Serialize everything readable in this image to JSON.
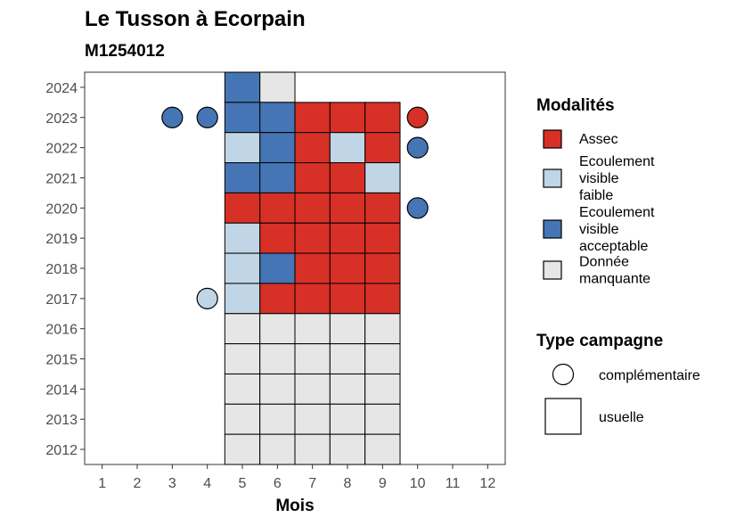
{
  "chart_data": {
    "type": "heatmap",
    "title": "Le Tusson à Ecorpain",
    "subtitle": "M1254012",
    "xlabel": "Mois",
    "ylabel": "",
    "x_ticks": [
      "1",
      "2",
      "3",
      "4",
      "5",
      "6",
      "7",
      "8",
      "9",
      "10",
      "11",
      "12"
    ],
    "y_ticks": [
      "2012",
      "2013",
      "2014",
      "2015",
      "2016",
      "2017",
      "2018",
      "2019",
      "2020",
      "2021",
      "2022",
      "2023",
      "2024"
    ],
    "xlim": [
      0.5,
      12.5
    ],
    "ylim": [
      2011.5,
      2024.5
    ],
    "grid": false,
    "colors": {
      "assec": "#d73027",
      "faible": "#c0d6e6",
      "acceptable": "#4575b4",
      "manquante": "#e6e6e6"
    },
    "legend_modalites": {
      "title": "Modalités",
      "placement": "right",
      "items": [
        {
          "key": "assec",
          "lines": [
            "Assec"
          ]
        },
        {
          "key": "faible",
          "lines": [
            "Ecoulement",
            "visible",
            "faible"
          ]
        },
        {
          "key": "acceptable",
          "lines": [
            "Ecoulement",
            "visible",
            "acceptable"
          ]
        },
        {
          "key": "manquante",
          "lines": [
            "Donnée",
            "manquante"
          ]
        }
      ]
    },
    "legend_campagne": {
      "title": "Type campagne",
      "placement": "right",
      "items": [
        {
          "shape": "circle",
          "label": "complémentaire"
        },
        {
          "shape": "square",
          "label": "usuelle"
        }
      ]
    },
    "usuelle": [
      {
        "year": 2024,
        "month": 5,
        "m": "acceptable"
      },
      {
        "year": 2024,
        "month": 6,
        "m": "manquante"
      },
      {
        "year": 2023,
        "month": 5,
        "m": "acceptable"
      },
      {
        "year": 2023,
        "month": 6,
        "m": "acceptable"
      },
      {
        "year": 2023,
        "month": 7,
        "m": "assec"
      },
      {
        "year": 2023,
        "month": 8,
        "m": "assec"
      },
      {
        "year": 2023,
        "month": 9,
        "m": "assec"
      },
      {
        "year": 2022,
        "month": 5,
        "m": "faible"
      },
      {
        "year": 2022,
        "month": 6,
        "m": "acceptable"
      },
      {
        "year": 2022,
        "month": 7,
        "m": "assec"
      },
      {
        "year": 2022,
        "month": 8,
        "m": "faible"
      },
      {
        "year": 2022,
        "month": 9,
        "m": "assec"
      },
      {
        "year": 2021,
        "month": 5,
        "m": "acceptable"
      },
      {
        "year": 2021,
        "month": 6,
        "m": "acceptable"
      },
      {
        "year": 2021,
        "month": 7,
        "m": "assec"
      },
      {
        "year": 2021,
        "month": 8,
        "m": "assec"
      },
      {
        "year": 2021,
        "month": 9,
        "m": "faible"
      },
      {
        "year": 2020,
        "month": 5,
        "m": "assec"
      },
      {
        "year": 2020,
        "month": 6,
        "m": "assec"
      },
      {
        "year": 2020,
        "month": 7,
        "m": "assec"
      },
      {
        "year": 2020,
        "month": 8,
        "m": "assec"
      },
      {
        "year": 2020,
        "month": 9,
        "m": "assec"
      },
      {
        "year": 2019,
        "month": 5,
        "m": "faible"
      },
      {
        "year": 2019,
        "month": 6,
        "m": "assec"
      },
      {
        "year": 2019,
        "month": 7,
        "m": "assec"
      },
      {
        "year": 2019,
        "month": 8,
        "m": "assec"
      },
      {
        "year": 2019,
        "month": 9,
        "m": "assec"
      },
      {
        "year": 2018,
        "month": 5,
        "m": "faible"
      },
      {
        "year": 2018,
        "month": 6,
        "m": "acceptable"
      },
      {
        "year": 2018,
        "month": 7,
        "m": "assec"
      },
      {
        "year": 2018,
        "month": 8,
        "m": "assec"
      },
      {
        "year": 2018,
        "month": 9,
        "m": "assec"
      },
      {
        "year": 2017,
        "month": 5,
        "m": "faible"
      },
      {
        "year": 2017,
        "month": 6,
        "m": "assec"
      },
      {
        "year": 2017,
        "month": 7,
        "m": "assec"
      },
      {
        "year": 2017,
        "month": 8,
        "m": "assec"
      },
      {
        "year": 2017,
        "month": 9,
        "m": "assec"
      },
      {
        "year": 2016,
        "month": 5,
        "m": "manquante"
      },
      {
        "year": 2016,
        "month": 6,
        "m": "manquante"
      },
      {
        "year": 2016,
        "month": 7,
        "m": "manquante"
      },
      {
        "year": 2016,
        "month": 8,
        "m": "manquante"
      },
      {
        "year": 2016,
        "month": 9,
        "m": "manquante"
      },
      {
        "year": 2015,
        "month": 5,
        "m": "manquante"
      },
      {
        "year": 2015,
        "month": 6,
        "m": "manquante"
      },
      {
        "year": 2015,
        "month": 7,
        "m": "manquante"
      },
      {
        "year": 2015,
        "month": 8,
        "m": "manquante"
      },
      {
        "year": 2015,
        "month": 9,
        "m": "manquante"
      },
      {
        "year": 2014,
        "month": 5,
        "m": "manquante"
      },
      {
        "year": 2014,
        "month": 6,
        "m": "manquante"
      },
      {
        "year": 2014,
        "month": 7,
        "m": "manquante"
      },
      {
        "year": 2014,
        "month": 8,
        "m": "manquante"
      },
      {
        "year": 2014,
        "month": 9,
        "m": "manquante"
      },
      {
        "year": 2013,
        "month": 5,
        "m": "manquante"
      },
      {
        "year": 2013,
        "month": 6,
        "m": "manquante"
      },
      {
        "year": 2013,
        "month": 7,
        "m": "manquante"
      },
      {
        "year": 2013,
        "month": 8,
        "m": "manquante"
      },
      {
        "year": 2013,
        "month": 9,
        "m": "manquante"
      },
      {
        "year": 2012,
        "month": 5,
        "m": "manquante"
      },
      {
        "year": 2012,
        "month": 6,
        "m": "manquante"
      },
      {
        "year": 2012,
        "month": 7,
        "m": "manquante"
      },
      {
        "year": 2012,
        "month": 8,
        "m": "manquante"
      },
      {
        "year": 2012,
        "month": 9,
        "m": "manquante"
      }
    ],
    "complementaire": [
      {
        "year": 2023,
        "month": 3,
        "m": "acceptable"
      },
      {
        "year": 2023,
        "month": 4,
        "m": "acceptable"
      },
      {
        "year": 2023,
        "month": 10,
        "m": "assec"
      },
      {
        "year": 2022,
        "month": 10,
        "m": "acceptable"
      },
      {
        "year": 2020,
        "month": 10,
        "m": "acceptable"
      },
      {
        "year": 2017,
        "month": 4,
        "m": "faible"
      }
    ]
  }
}
